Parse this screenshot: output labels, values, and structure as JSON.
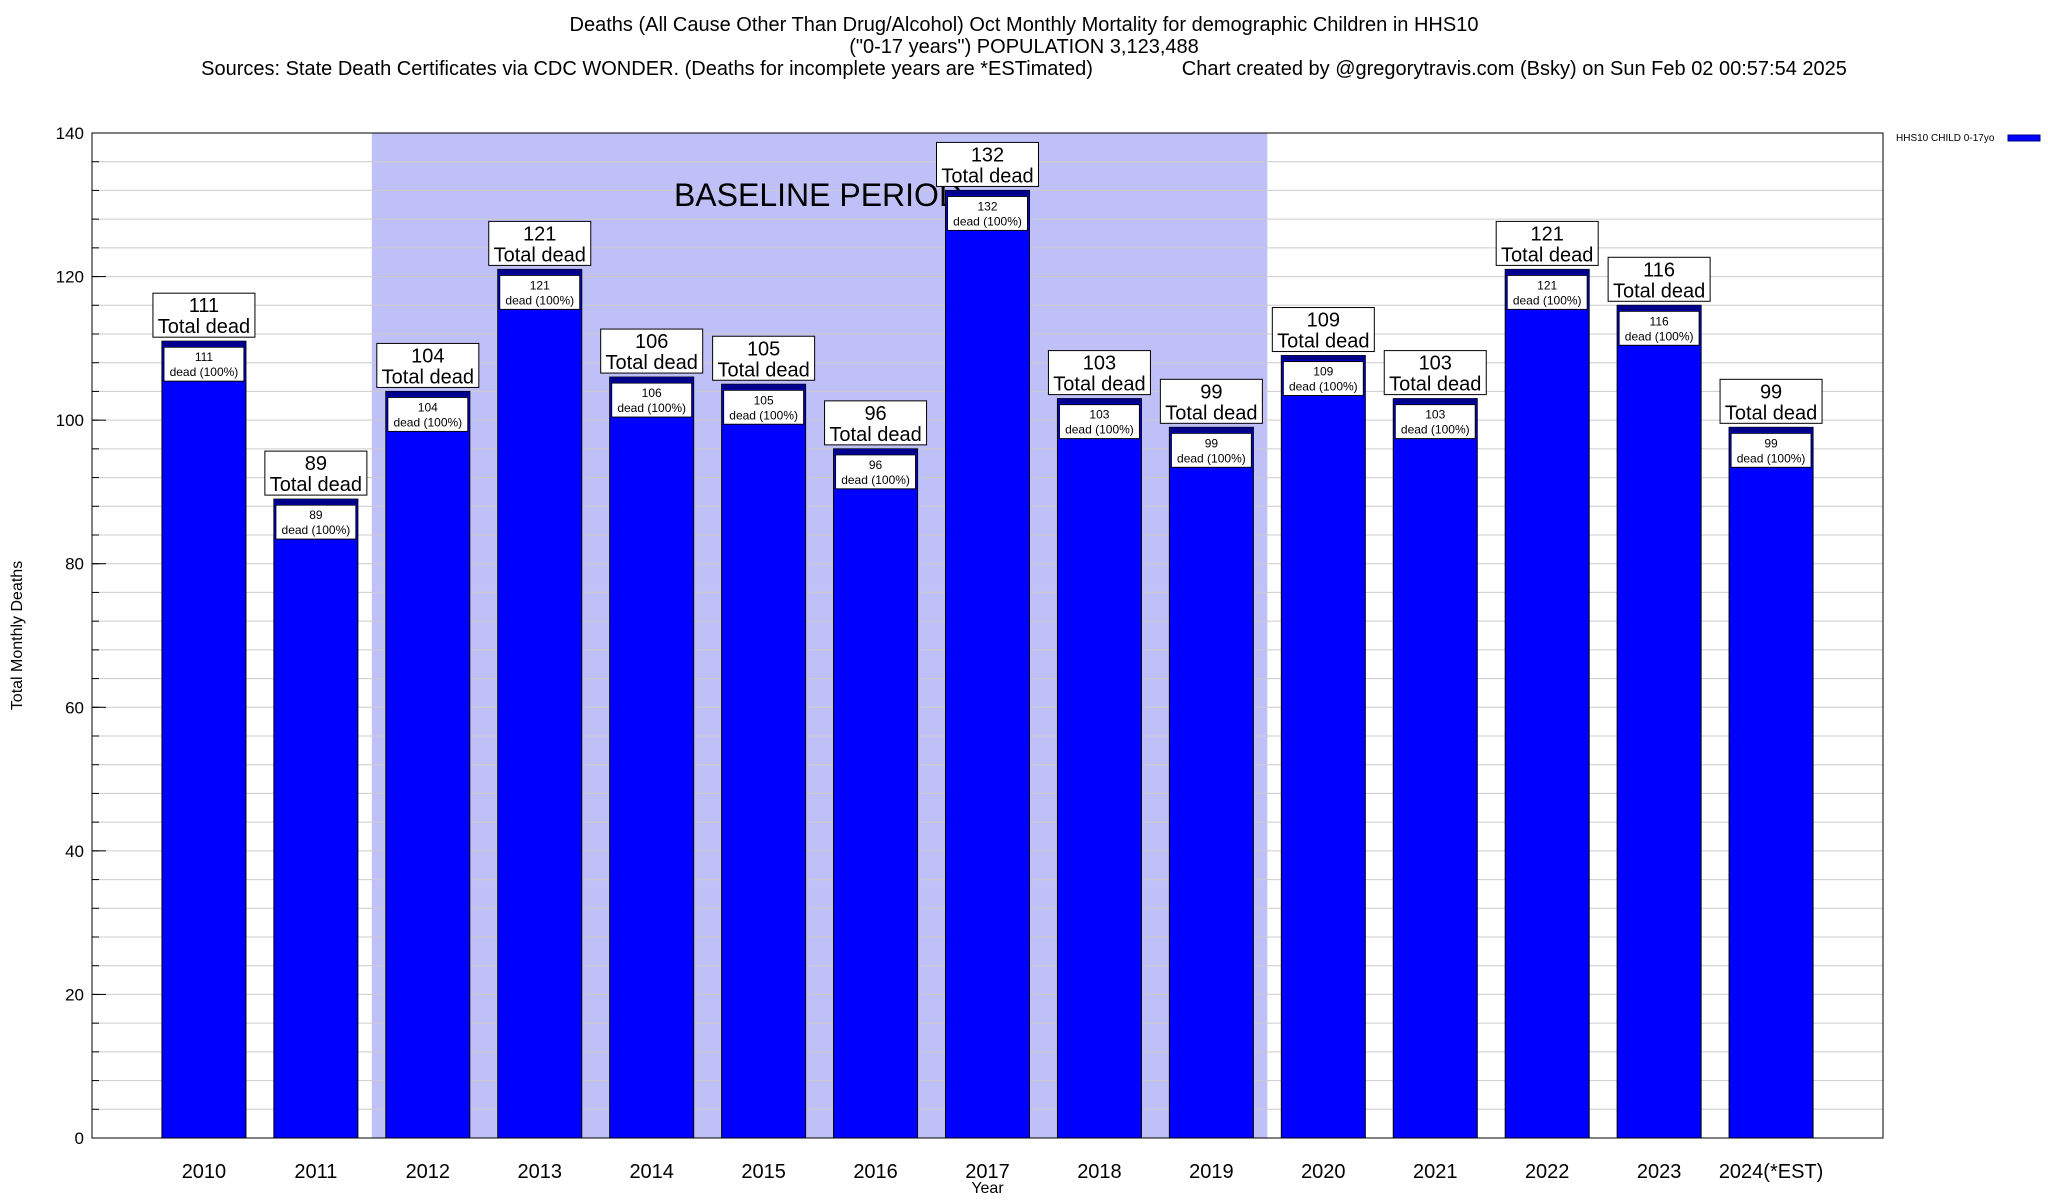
{
  "titles": {
    "line1": "Deaths (All Cause Other Than Drug/Alcohol) Oct Monthly Mortality for demographic Children in HHS10",
    "line2": "(\"0-17 years\") POPULATION 3,123,488",
    "line3": "Sources: State Death Certificates via CDC WONDER. (Deaths for incomplete years are *ESTimated)                Chart created by @gregorytravis.com (Bsky) on Sun Feb 02 00:57:54 2025"
  },
  "chart_data": {
    "type": "bar",
    "xlabel": "Year",
    "ylabel": "Total Monthly Deaths",
    "ylim": [
      0,
      140
    ],
    "yticks": [
      0,
      20,
      40,
      60,
      80,
      100,
      120,
      140
    ],
    "y_minor_step": 4,
    "grid": true,
    "legend": {
      "position": "top-right",
      "label": "HHS10 CHILD 0-17yo"
    },
    "categories": [
      "2010",
      "2011",
      "2012",
      "2013",
      "2014",
      "2015",
      "2016",
      "2017",
      "2018",
      "2019",
      "2020",
      "2021",
      "2022",
      "2023",
      "2024(*EST)"
    ],
    "series": [
      {
        "name": "HHS10 CHILD 0-17yo",
        "values": [
          111,
          89,
          104,
          121,
          106,
          105,
          96,
          132,
          103,
          99,
          109,
          103,
          121,
          116,
          99
        ]
      }
    ],
    "total_label": "Total dead",
    "inner_label": "dead (100%)",
    "baseline": {
      "label": "BASELINE PERIOD",
      "from": "2012",
      "to": "2019"
    },
    "colors": {
      "bar": "#0000ff",
      "bar_cap": "#00008b",
      "baseline": "#c0c0f8"
    }
  }
}
